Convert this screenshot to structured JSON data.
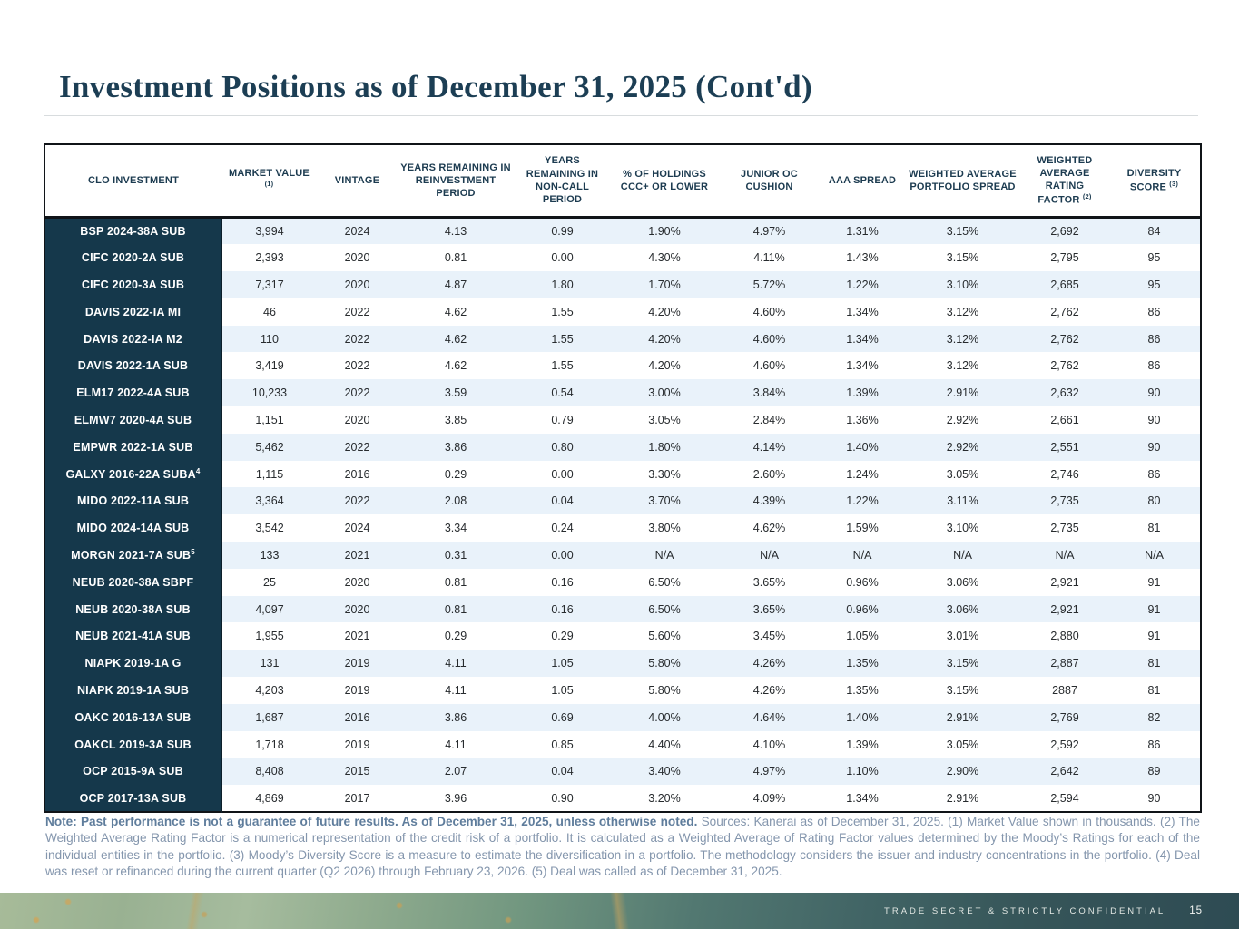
{
  "page": {
    "title": "Investment Positions as of December 31, 2025 (Cont'd)"
  },
  "table": {
    "columns": [
      {
        "label": "CLO INVESTMENT",
        "sup": ""
      },
      {
        "label": "MARKET VALUE",
        "sup": "(1)"
      },
      {
        "label": "VINTAGE",
        "sup": ""
      },
      {
        "label": "YEARS REMAINING IN REINVESTMENT PERIOD",
        "sup": ""
      },
      {
        "label": "YEARS REMAINING IN NON-CALL PERIOD",
        "sup": ""
      },
      {
        "label": "% OF HOLDINGS CCC+ OR LOWER",
        "sup": ""
      },
      {
        "label": "JUNIOR OC CUSHION",
        "sup": ""
      },
      {
        "label": "AAA SPREAD",
        "sup": ""
      },
      {
        "label": "WEIGHTED AVERAGE PORTFOLIO SPREAD",
        "sup": ""
      },
      {
        "label": "WEIGHTED AVERAGE RATING FACTOR",
        "sup": "(2)"
      },
      {
        "label": "DIVERSITY SCORE",
        "sup": "(3)"
      }
    ],
    "rows": [
      {
        "name": "BSP 2024-38A SUB",
        "sup": "",
        "values": [
          "3,994",
          "2024",
          "4.13",
          "0.99",
          "1.90%",
          "4.97%",
          "1.31%",
          "3.15%",
          "2,692",
          "84"
        ]
      },
      {
        "name": "CIFC 2020-2A SUB",
        "sup": "",
        "values": [
          "2,393",
          "2020",
          "0.81",
          "0.00",
          "4.30%",
          "4.11%",
          "1.43%",
          "3.15%",
          "2,795",
          "95"
        ]
      },
      {
        "name": "CIFC 2020-3A SUB",
        "sup": "",
        "values": [
          "7,317",
          "2020",
          "4.87",
          "1.80",
          "1.70%",
          "5.72%",
          "1.22%",
          "3.10%",
          "2,685",
          "95"
        ]
      },
      {
        "name": "DAVIS 2022-IA MI",
        "sup": "",
        "values": [
          "46",
          "2022",
          "4.62",
          "1.55",
          "4.20%",
          "4.60%",
          "1.34%",
          "3.12%",
          "2,762",
          "86"
        ]
      },
      {
        "name": "DAVIS 2022-IA M2",
        "sup": "",
        "values": [
          "110",
          "2022",
          "4.62",
          "1.55",
          "4.20%",
          "4.60%",
          "1.34%",
          "3.12%",
          "2,762",
          "86"
        ]
      },
      {
        "name": "DAVIS 2022-1A SUB",
        "sup": "",
        "values": [
          "3,419",
          "2022",
          "4.62",
          "1.55",
          "4.20%",
          "4.60%",
          "1.34%",
          "3.12%",
          "2,762",
          "86"
        ]
      },
      {
        "name": "ELM17 2022-4A SUB",
        "sup": "",
        "values": [
          "10,233",
          "2022",
          "3.59",
          "0.54",
          "3.00%",
          "3.84%",
          "1.39%",
          "2.91%",
          "2,632",
          "90"
        ]
      },
      {
        "name": "ELMW7 2020-4A SUB",
        "sup": "",
        "values": [
          "1,151",
          "2020",
          "3.85",
          "0.79",
          "3.05%",
          "2.84%",
          "1.36%",
          "2.92%",
          "2,661",
          "90"
        ]
      },
      {
        "name": "EMPWR 2022-1A SUB",
        "sup": "",
        "values": [
          "5,462",
          "2022",
          "3.86",
          "0.80",
          "1.80%",
          "4.14%",
          "1.40%",
          "2.92%",
          "2,551",
          "90"
        ]
      },
      {
        "name": "GALXY 2016-22A SUBA",
        "sup": "4",
        "values": [
          "1,115",
          "2016",
          "0.29",
          "0.00",
          "3.30%",
          "2.60%",
          "1.24%",
          "3.05%",
          "2,746",
          "86"
        ]
      },
      {
        "name": "MIDO 2022-11A SUB",
        "sup": "",
        "values": [
          "3,364",
          "2022",
          "2.08",
          "0.04",
          "3.70%",
          "4.39%",
          "1.22%",
          "3.11%",
          "2,735",
          "80"
        ]
      },
      {
        "name": "MIDO 2024-14A SUB",
        "sup": "",
        "values": [
          "3,542",
          "2024",
          "3.34",
          "0.24",
          "3.80%",
          "4.62%",
          "1.59%",
          "3.10%",
          "2,735",
          "81"
        ]
      },
      {
        "name": "MORGN 2021-7A SUB",
        "sup": "5",
        "values": [
          "133",
          "2021",
          "0.31",
          "0.00",
          "N/A",
          "N/A",
          "N/A",
          "N/A",
          "N/A",
          "N/A"
        ]
      },
      {
        "name": "NEUB 2020-38A SBPF",
        "sup": "",
        "values": [
          "25",
          "2020",
          "0.81",
          "0.16",
          "6.50%",
          "3.65%",
          "0.96%",
          "3.06%",
          "2,921",
          "91"
        ]
      },
      {
        "name": "NEUB 2020-38A SUB",
        "sup": "",
        "values": [
          "4,097",
          "2020",
          "0.81",
          "0.16",
          "6.50%",
          "3.65%",
          "0.96%",
          "3.06%",
          "2,921",
          "91"
        ]
      },
      {
        "name": "NEUB 2021-41A SUB",
        "sup": "",
        "values": [
          "1,955",
          "2021",
          "0.29",
          "0.29",
          "5.60%",
          "3.45%",
          "1.05%",
          "3.01%",
          "2,880",
          "91"
        ]
      },
      {
        "name": "NIAPK 2019-1A G",
        "sup": "",
        "values": [
          "131",
          "2019",
          "4.11",
          "1.05",
          "5.80%",
          "4.26%",
          "1.35%",
          "3.15%",
          "2,887",
          "81"
        ]
      },
      {
        "name": "NIAPK 2019-1A SUB",
        "sup": "",
        "values": [
          "4,203",
          "2019",
          "4.11",
          "1.05",
          "5.80%",
          "4.26%",
          "1.35%",
          "3.15%",
          "2887",
          "81"
        ]
      },
      {
        "name": "OAKC 2016-13A SUB",
        "sup": "",
        "values": [
          "1,687",
          "2016",
          "3.86",
          "0.69",
          "4.00%",
          "4.64%",
          "1.40%",
          "2.91%",
          "2,769",
          "82"
        ]
      },
      {
        "name": "OAKCL 2019-3A SUB",
        "sup": "",
        "values": [
          "1,718",
          "2019",
          "4.11",
          "0.85",
          "4.40%",
          "4.10%",
          "1.39%",
          "3.05%",
          "2,592",
          "86"
        ]
      },
      {
        "name": "OCP 2015-9A SUB",
        "sup": "",
        "values": [
          "8,408",
          "2015",
          "2.07",
          "0.04",
          "3.40%",
          "4.97%",
          "1.10%",
          "2.90%",
          "2,642",
          "89"
        ]
      },
      {
        "name": "OCP 2017-13A SUB",
        "sup": "",
        "values": [
          "4,869",
          "2017",
          "3.96",
          "0.90",
          "3.20%",
          "4.09%",
          "1.34%",
          "2.91%",
          "2,594",
          "90"
        ]
      }
    ]
  },
  "note": {
    "bold": "Note: Past performance is not a guarantee of future results. As of December 31, 2025, unless otherwise noted.",
    "regular": " Sources: Kanerai as of December 31, 2025. (1) Market Value shown in thousands. (2) The Weighted Average Rating Factor is a numerical representation of the credit risk of a portfolio. It is calculated as a Weighted Average of Rating Factor values determined by the Moody’s Ratings for each of the individual entities in the portfolio. (3) Moody’s Diversity Score is a measure to estimate the diversification in a portfolio. The methodology considers the issuer and industry concentrations in the portfolio. (4) Deal was reset or refinanced during the current quarter (Q2 2026) through February 23, 2026. (5) Deal was called as of December 31, 2025."
  },
  "footer": {
    "confidentiality": "TRADE SECRET & STRICTLY CONFIDENTIAL",
    "page_number": "15"
  },
  "colors": {
    "title_text": "#1c3e54",
    "header_text": "#1c3b50",
    "row_header_bg": "#15384b",
    "row_header_text": "#ffffff",
    "row_alt_bg": "#e9f2fa",
    "table_border": "#101418",
    "note_text": "#8496ad",
    "note_bold_text": "#5f7d9c",
    "footer_green": "#a7bb99",
    "footer_teal": "#2e4b53",
    "footer_gold": "#c9a35c"
  }
}
